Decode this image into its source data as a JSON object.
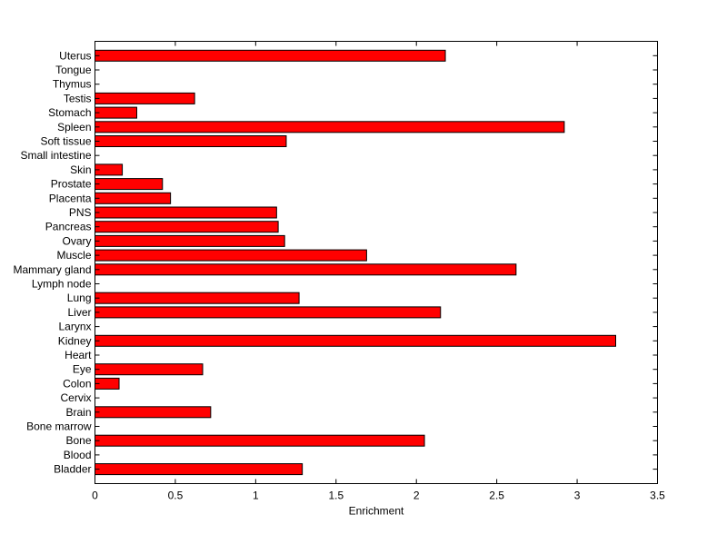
{
  "chart_data": {
    "type": "bar",
    "orientation": "horizontal",
    "xlabel": "Enrichment",
    "ylabel": "",
    "xlim": [
      0,
      3.5
    ],
    "xticks": [
      0,
      0.5,
      1,
      1.5,
      2,
      2.5,
      3,
      3.5
    ],
    "xtick_labels": [
      "0",
      "0.5",
      "1",
      "1.5",
      "2",
      "2.5",
      "3",
      "3.5"
    ],
    "grid": false,
    "bar_color": "#ff0000",
    "categories": [
      "Bladder",
      "Blood",
      "Bone",
      "Bone marrow",
      "Brain",
      "Cervix",
      "Colon",
      "Eye",
      "Heart",
      "Kidney",
      "Larynx",
      "Liver",
      "Lung",
      "Lymph node",
      "Mammary gland",
      "Muscle",
      "Ovary",
      "Pancreas",
      "PNS",
      "Placenta",
      "Prostate",
      "Skin",
      "Small intestine",
      "Soft tissue",
      "Spleen",
      "Stomach",
      "Testis",
      "Thymus",
      "Tongue",
      "Uterus"
    ],
    "values": [
      1.29,
      0,
      2.05,
      0,
      0.72,
      0,
      0.15,
      0.67,
      0,
      3.24,
      0,
      2.15,
      1.27,
      0,
      2.62,
      1.69,
      1.18,
      1.14,
      1.13,
      0.47,
      0.42,
      0.17,
      0,
      1.19,
      2.92,
      0.26,
      0.62,
      0,
      0,
      2.18
    ]
  }
}
